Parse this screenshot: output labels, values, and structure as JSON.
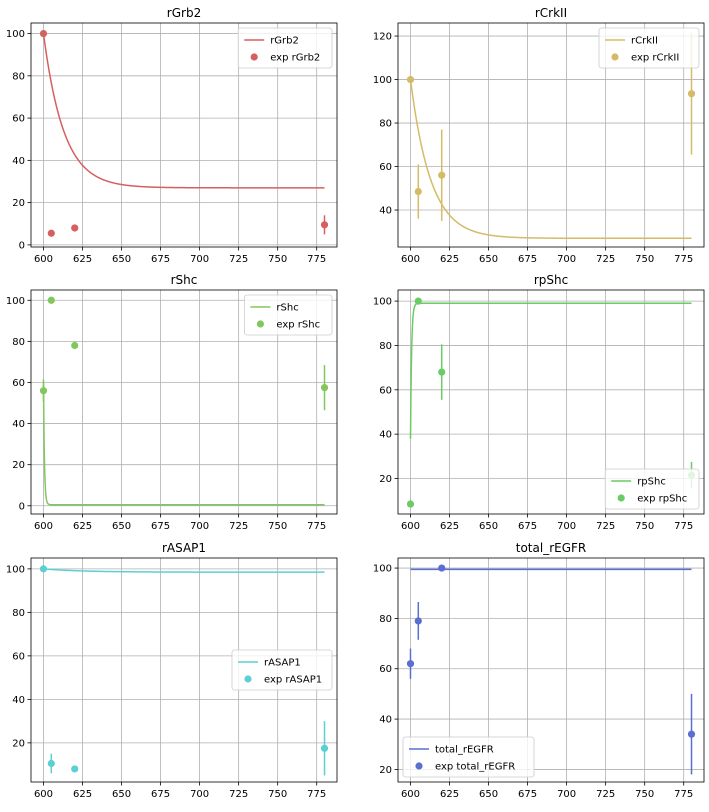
{
  "chart_data": [
    {
      "type": "line",
      "title": "rGrb2",
      "xlabel": "",
      "ylabel": "",
      "xlim": [
        592,
        788
      ],
      "ylim": [
        -1,
        105
      ],
      "xticks": [
        600,
        625,
        650,
        675,
        700,
        725,
        750,
        775
      ],
      "yticks": [
        0,
        20,
        40,
        60,
        80,
        100
      ],
      "grid": true,
      "legend_position": "upper right",
      "color": "#d65f5f",
      "model": {
        "name": "rGrb2",
        "kind": "exp_decay",
        "start": 100,
        "end": 27,
        "tau": 13
      },
      "experiment": {
        "name": "exp rGrb2",
        "x": [
          600,
          605,
          620,
          780
        ],
        "y": [
          100,
          5.5,
          8,
          9.5
        ],
        "err": [
          0,
          0,
          0,
          4.5
        ]
      }
    },
    {
      "type": "line",
      "title": "rCrkII",
      "xlabel": "",
      "ylabel": "",
      "xlim": [
        592,
        788
      ],
      "ylim": [
        23,
        126
      ],
      "xticks": [
        600,
        625,
        650,
        675,
        700,
        725,
        750,
        775
      ],
      "yticks": [
        40,
        60,
        80,
        100,
        120
      ],
      "grid": true,
      "legend_position": "upper right",
      "color": "#d5bb67",
      "model": {
        "name": "rCrkII",
        "kind": "exp_decay",
        "start": 100,
        "end": 27,
        "tau": 13
      },
      "experiment": {
        "name": "exp rCrkII",
        "x": [
          600,
          605,
          620,
          780
        ],
        "y": [
          100,
          48.5,
          56,
          93.5
        ],
        "err": [
          0,
          12.5,
          21,
          28
        ]
      }
    },
    {
      "type": "line",
      "title": "rShc",
      "xlabel": "",
      "ylabel": "",
      "xlim": [
        592,
        788
      ],
      "ylim": [
        -4,
        105
      ],
      "xticks": [
        600,
        625,
        650,
        675,
        700,
        725,
        750,
        775
      ],
      "yticks": [
        0,
        20,
        40,
        60,
        80,
        100
      ],
      "grid": true,
      "legend_position": "upper right",
      "color": "#82c65e",
      "model": {
        "name": "rShc",
        "kind": "exp_decay",
        "start": 60,
        "end": 0.5,
        "tau": 0.6
      },
      "experiment": {
        "name": "exp rShc",
        "x": [
          600,
          605,
          620,
          780
        ],
        "y": [
          56,
          100,
          78,
          57.5
        ],
        "err": [
          5.5,
          0,
          0,
          11
        ]
      }
    },
    {
      "type": "line",
      "title": "rpShc",
      "xlabel": "",
      "ylabel": "",
      "xlim": [
        592,
        788
      ],
      "ylim": [
        4,
        105
      ],
      "xticks": [
        600,
        625,
        650,
        675,
        700,
        725,
        750,
        775
      ],
      "yticks": [
        20,
        40,
        60,
        80,
        100
      ],
      "grid": true,
      "legend_position": "lower right",
      "color": "#6acc65",
      "model": {
        "name": "rpShc",
        "kind": "exp_rise",
        "start": 38,
        "end": 99,
        "tau": 0.7
      },
      "experiment": {
        "name": "exp rpShc",
        "x": [
          600,
          605,
          620,
          780
        ],
        "y": [
          8.5,
          100,
          68,
          21.5
        ],
        "err": [
          0,
          0,
          12.5,
          6
        ]
      }
    },
    {
      "type": "line",
      "title": "rASAP1",
      "xlabel": "",
      "ylabel": "",
      "xlim": [
        592,
        788
      ],
      "ylim": [
        2,
        105
      ],
      "xticks": [
        600,
        625,
        650,
        675,
        700,
        725,
        750,
        775
      ],
      "yticks": [
        20,
        40,
        60,
        80,
        100
      ],
      "grid": true,
      "legend_position": "center right",
      "color": "#5ccfd5",
      "model": {
        "name": "rASAP1",
        "kind": "exp_decay",
        "start": 100,
        "end": 98.5,
        "tau": 25
      },
      "experiment": {
        "name": "exp rASAP1",
        "x": [
          600,
          605,
          620,
          780
        ],
        "y": [
          100,
          10.5,
          8,
          17.5
        ],
        "err": [
          0,
          4.5,
          0,
          12.5
        ]
      }
    },
    {
      "type": "line",
      "title": "total_rEGFR",
      "xlabel": "",
      "ylabel": "",
      "xlim": [
        592,
        788
      ],
      "ylim": [
        15,
        104
      ],
      "xticks": [
        600,
        625,
        650,
        675,
        700,
        725,
        750,
        775
      ],
      "yticks": [
        20,
        40,
        60,
        80,
        100
      ],
      "grid": true,
      "legend_position": "lower left",
      "color": "#5a6fd0",
      "model": {
        "name": "total_rEGFR",
        "kind": "flat",
        "start": 99.5,
        "end": 99.5,
        "tau": 1
      },
      "experiment": {
        "name": "exp total_rEGFR",
        "x": [
          600,
          605,
          620,
          780
        ],
        "y": [
          62,
          79,
          100,
          34
        ],
        "err": [
          6,
          7.5,
          0,
          16
        ]
      }
    }
  ]
}
